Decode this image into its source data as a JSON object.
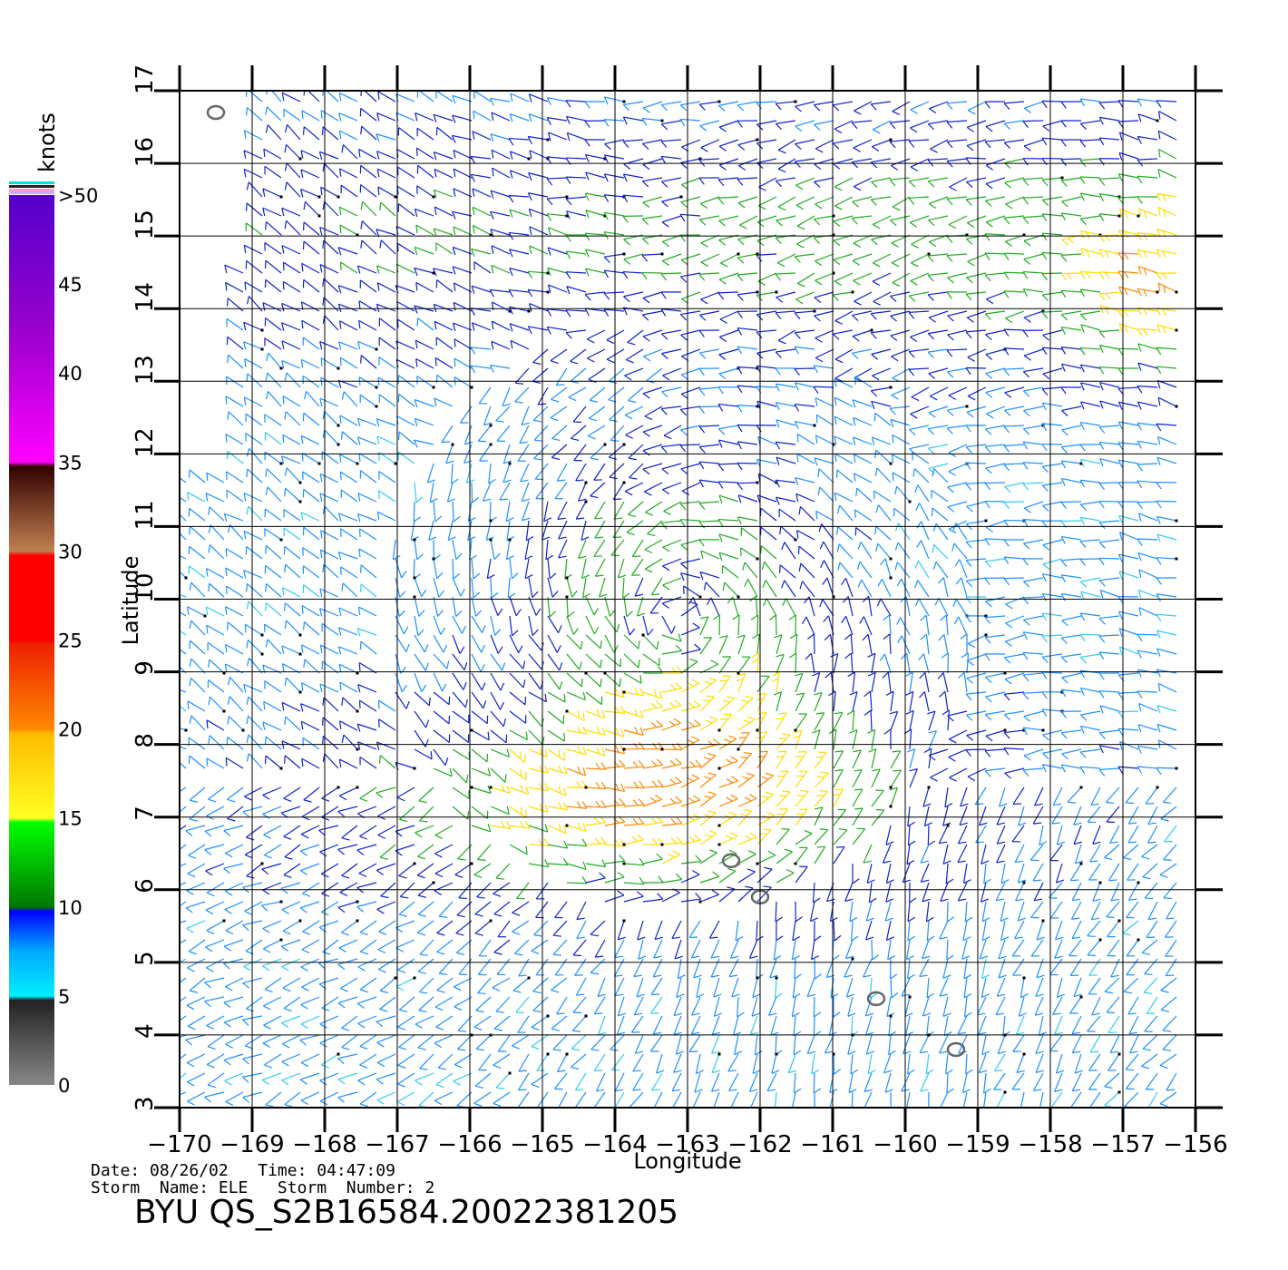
{
  "map": {
    "lon_range": [
      -170,
      -156
    ],
    "lat_range": [
      3,
      17
    ],
    "lon_ticks": [
      "-170",
      "-169",
      "-168",
      "-167",
      "-166",
      "-165",
      "-164",
      "-163",
      "-162",
      "-161",
      "-160",
      "-159",
      "-158",
      "-157",
      "-156"
    ],
    "lat_ticks": [
      "3",
      "4",
      "5",
      "6",
      "7",
      "8",
      "9",
      "10",
      "11",
      "12",
      "13",
      "14",
      "15",
      "16",
      "17"
    ],
    "xlabel": "Longitude",
    "ylabel": "Latitude",
    "grid": true,
    "storm_center": {
      "lon": -163.1,
      "lat": 9.8
    },
    "islands": [
      {
        "lon": -169.5,
        "lat": 16.7
      },
      {
        "lon": -162.4,
        "lat": 6.4
      },
      {
        "lon": -162.0,
        "lat": 5.9
      },
      {
        "lon": -160.4,
        "lat": 4.5
      },
      {
        "lon": -159.3,
        "lat": 3.8
      }
    ]
  },
  "colorbar": {
    "title": "knots",
    "labels": [
      "0",
      "5",
      "10",
      "15",
      "20",
      "25",
      "30",
      "35",
      "40",
      "45",
      ">50"
    ]
  },
  "info": {
    "date_line": "Date: 08/26/02   Time: 04:47:09",
    "storm_line": "Storm  Name: ELE   Storm  Number: 2",
    "title": "BYU  QS_S2B16584.20022381205"
  }
}
